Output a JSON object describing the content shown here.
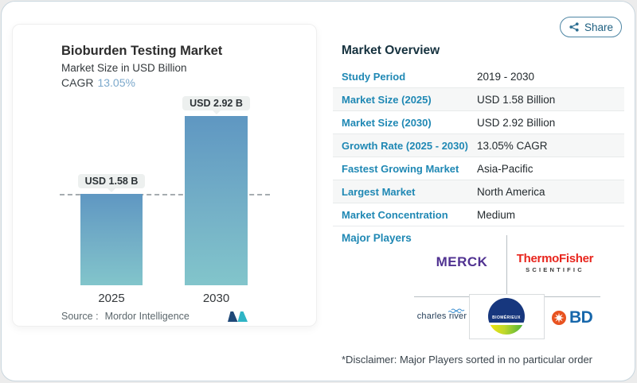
{
  "share": {
    "label": "Share"
  },
  "chart": {
    "title": "Bioburden Testing Market",
    "subtitle": "Market Size in USD Billion",
    "cagr_label": "CAGR",
    "cagr_value": "13.05%",
    "source_label": "Source :",
    "source_value": "Mordor Intelligence"
  },
  "chart_data": {
    "type": "bar",
    "title": "Bioburden Testing Market",
    "subtitle": "Market Size in USD Billion",
    "unit": "USD Billion",
    "cagr": "13.05%",
    "categories": [
      "2025",
      "2030"
    ],
    "values": [
      1.58,
      2.92
    ],
    "bar_labels": [
      "USD 1.58 B",
      "USD 2.92 B"
    ],
    "baseline_dashed_at": 1.58,
    "ylim": [
      0,
      3.2
    ],
    "grid": false,
    "bar_gradient": [
      "#5f97c2",
      "#82c5cb"
    ]
  },
  "overview": {
    "heading": "Market Overview",
    "rows": [
      {
        "label": "Study Period",
        "value": "2019 - 2030"
      },
      {
        "label": "Market Size (2025)",
        "value": "USD 1.58 Billion"
      },
      {
        "label": "Market Size (2030)",
        "value": "USD 2.92 Billion"
      },
      {
        "label": "Growth Rate (2025 - 2030)",
        "value": "13.05% CAGR"
      },
      {
        "label": "Fastest Growing Market",
        "value": "Asia-Pacific"
      },
      {
        "label": "Largest Market",
        "value": "North America"
      },
      {
        "label": "Market Concentration",
        "value": "Medium"
      }
    ],
    "major_players": {
      "label": "Major Players",
      "players": [
        {
          "name": "Merck",
          "logo_text": "MERCK"
        },
        {
          "name": "Thermo Fisher Scientific",
          "logo_line1": "ThermoFisher",
          "logo_line2": "SCIENTIFIC"
        },
        {
          "name": "Charles River",
          "logo_text": "charles river"
        },
        {
          "name": "bioMérieux",
          "logo_text": "BIOMÉRIEUX"
        },
        {
          "name": "BD",
          "logo_text": "BD"
        }
      ]
    },
    "disclaimer": "*Disclaimer: Major Players sorted in no particular order"
  },
  "colors": {
    "accent_teal": "#1f88b4",
    "heading_navy": "#16323f",
    "cagr_value_blue": "#7ca9cc",
    "bar_top": "#5f97c2",
    "bar_bottom": "#82c5cb",
    "merck_purple": "#503291",
    "thermo_red": "#e8251d",
    "bd_blue": "#1767ab",
    "bd_orange": "#e8521f",
    "biomerieux_navy": "#17377e",
    "share_border": "#4e86a4"
  }
}
